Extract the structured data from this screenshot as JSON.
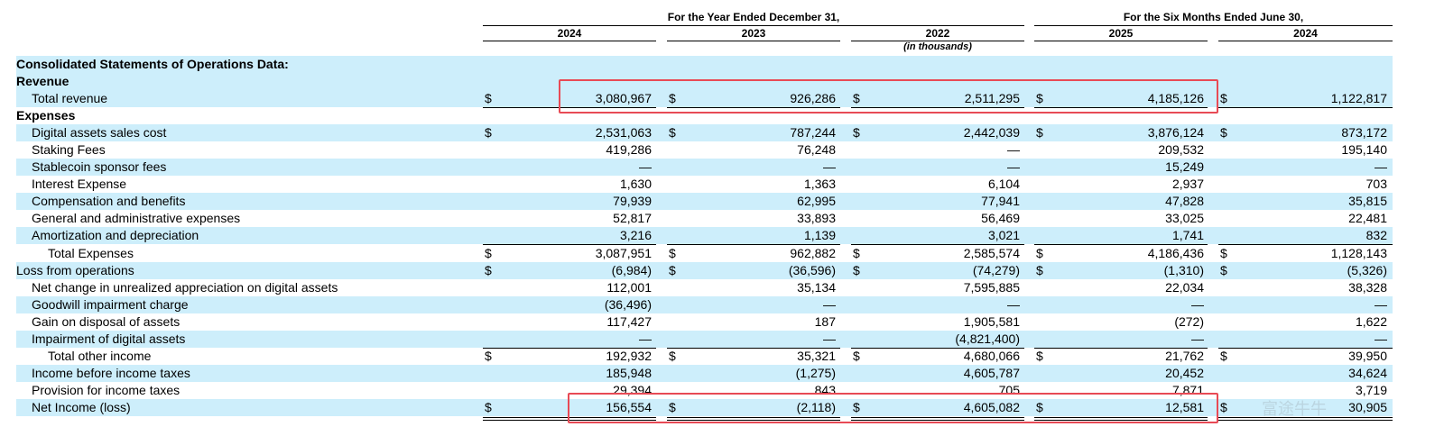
{
  "header": {
    "year_group": "For the Year Ended December 31,",
    "six_months_group": "For the Six Months Ended  June 30,",
    "columns": [
      "2024",
      "2023",
      "2022",
      "2025",
      "2024"
    ],
    "units_note": "(in thousands)"
  },
  "section_title": "Consolidated Statements of Operations Data:",
  "rows": [
    {
      "label": "Revenue",
      "bold": true,
      "values": [
        "",
        "",
        "",
        "",
        ""
      ]
    },
    {
      "label": "Total revenue",
      "values": [
        "3,080,967",
        "926,286",
        "2,511,295",
        "4,185,126",
        "1,122,817"
      ],
      "dollar": true
    },
    {
      "label": "Expenses",
      "bold": true,
      "values": [
        "",
        "",
        "",
        "",
        ""
      ]
    },
    {
      "label": "Digital assets sales cost",
      "values": [
        "2,531,063",
        "787,244",
        "2,442,039",
        "3,876,124",
        "873,172"
      ],
      "dollar": true
    },
    {
      "label": "Staking Fees",
      "values": [
        "419,286",
        "76,248",
        "—",
        "209,532",
        "195,140"
      ]
    },
    {
      "label": "Stablecoin sponsor fees",
      "values": [
        "—",
        "—",
        "—",
        "15,249",
        "—"
      ]
    },
    {
      "label": "Interest Expense",
      "values": [
        "1,630",
        "1,363",
        "6,104",
        "2,937",
        "703"
      ]
    },
    {
      "label": "Compensation and benefits",
      "values": [
        "79,939",
        "62,995",
        "77,941",
        "47,828",
        "35,815"
      ]
    },
    {
      "label": "General and administrative expenses",
      "values": [
        "52,817",
        "33,893",
        "56,469",
        "33,025",
        "22,481"
      ]
    },
    {
      "label": "Amortization and depreciation",
      "values": [
        "3,216",
        "1,139",
        "3,021",
        "1,741",
        "832"
      ]
    },
    {
      "label": "Total Expenses",
      "values": [
        "3,087,951",
        "962,882",
        "2,585,574",
        "4,186,436",
        "1,128,143"
      ],
      "dollar": true
    },
    {
      "label": "Loss from operations",
      "values": [
        "(6,984)",
        "(36,596)",
        "(74,279)",
        "(1,310)",
        "(5,326)"
      ],
      "dollar": true
    },
    {
      "label": "Net change in unrealized appreciation on digital assets",
      "values": [
        "112,001",
        "35,134",
        "7,595,885",
        "22,034",
        "38,328"
      ]
    },
    {
      "label": "Goodwill impairment charge",
      "values": [
        "(36,496)",
        "—",
        "—",
        "—",
        "—"
      ]
    },
    {
      "label": "Gain on disposal of assets",
      "values": [
        "117,427",
        "187",
        "1,905,581",
        "(272)",
        "1,622"
      ]
    },
    {
      "label": "Impairment of digital assets",
      "values": [
        "—",
        "—",
        "(4,821,400)",
        "—",
        "—"
      ]
    },
    {
      "label": "Total other income",
      "values": [
        "192,932",
        "35,321",
        "4,680,066",
        "21,762",
        "39,950"
      ],
      "dollar": true
    },
    {
      "label": "Income before income taxes",
      "values": [
        "185,948",
        "(1,275)",
        "4,605,787",
        "20,452",
        "34,624"
      ]
    },
    {
      "label": "Provision for income taxes",
      "values": [
        "29,394",
        "843",
        "705",
        "7,871",
        "3,719"
      ]
    },
    {
      "label": "Net Income (loss)",
      "values": [
        "156,554",
        "(2,118)",
        "4,605,082",
        "12,581",
        "30,905"
      ],
      "dollar": true
    }
  ],
  "currency_symbol": "$",
  "watermark": "富途牛牛",
  "colors": {
    "row_shade": "#cdeefb",
    "highlight_box": "#e84a55"
  }
}
